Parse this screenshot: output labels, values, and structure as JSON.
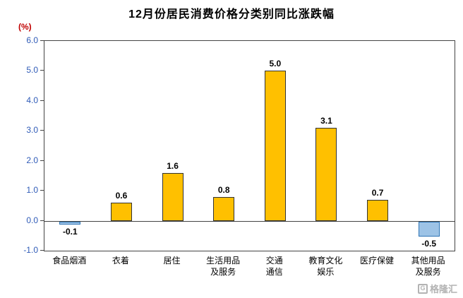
{
  "title": "12月份居民消费价格分类别同比涨跌幅",
  "y_axis_unit": "(%)",
  "watermark": "格隆汇",
  "colors": {
    "positive_bar": "#FFC000",
    "positive_bar_border": "#333333",
    "negative_bar": "#9DC3E6",
    "negative_bar_border": "#2E75B6",
    "axis": "#444444",
    "ytick_text": "#2F5BB7",
    "unit_text": "#C00000"
  },
  "chart_data": {
    "type": "bar",
    "title": "12月份居民消费价格分类别同比涨跌幅",
    "categories": [
      "食品烟酒",
      "衣着",
      "居住",
      "生活用品\n及服务",
      "交通\n通信",
      "教育文化\n娱乐",
      "医疗保健",
      "其他用品\n及服务"
    ],
    "values": [
      -0.1,
      0.6,
      1.6,
      0.8,
      5.0,
      3.1,
      0.7,
      -0.5
    ],
    "data_labels": [
      "-0.1",
      "0.6",
      "1.6",
      "0.8",
      "5.0",
      "3.1",
      "0.7",
      "-0.5"
    ],
    "xlabel": "",
    "ylabel": "(%)",
    "ylim": [
      -1.0,
      6.0
    ],
    "yticks": [
      "6.0",
      "5.0",
      "4.0",
      "3.0",
      "2.0",
      "1.0",
      "0.0",
      "-1.0"
    ],
    "grid": false,
    "legend": false
  }
}
